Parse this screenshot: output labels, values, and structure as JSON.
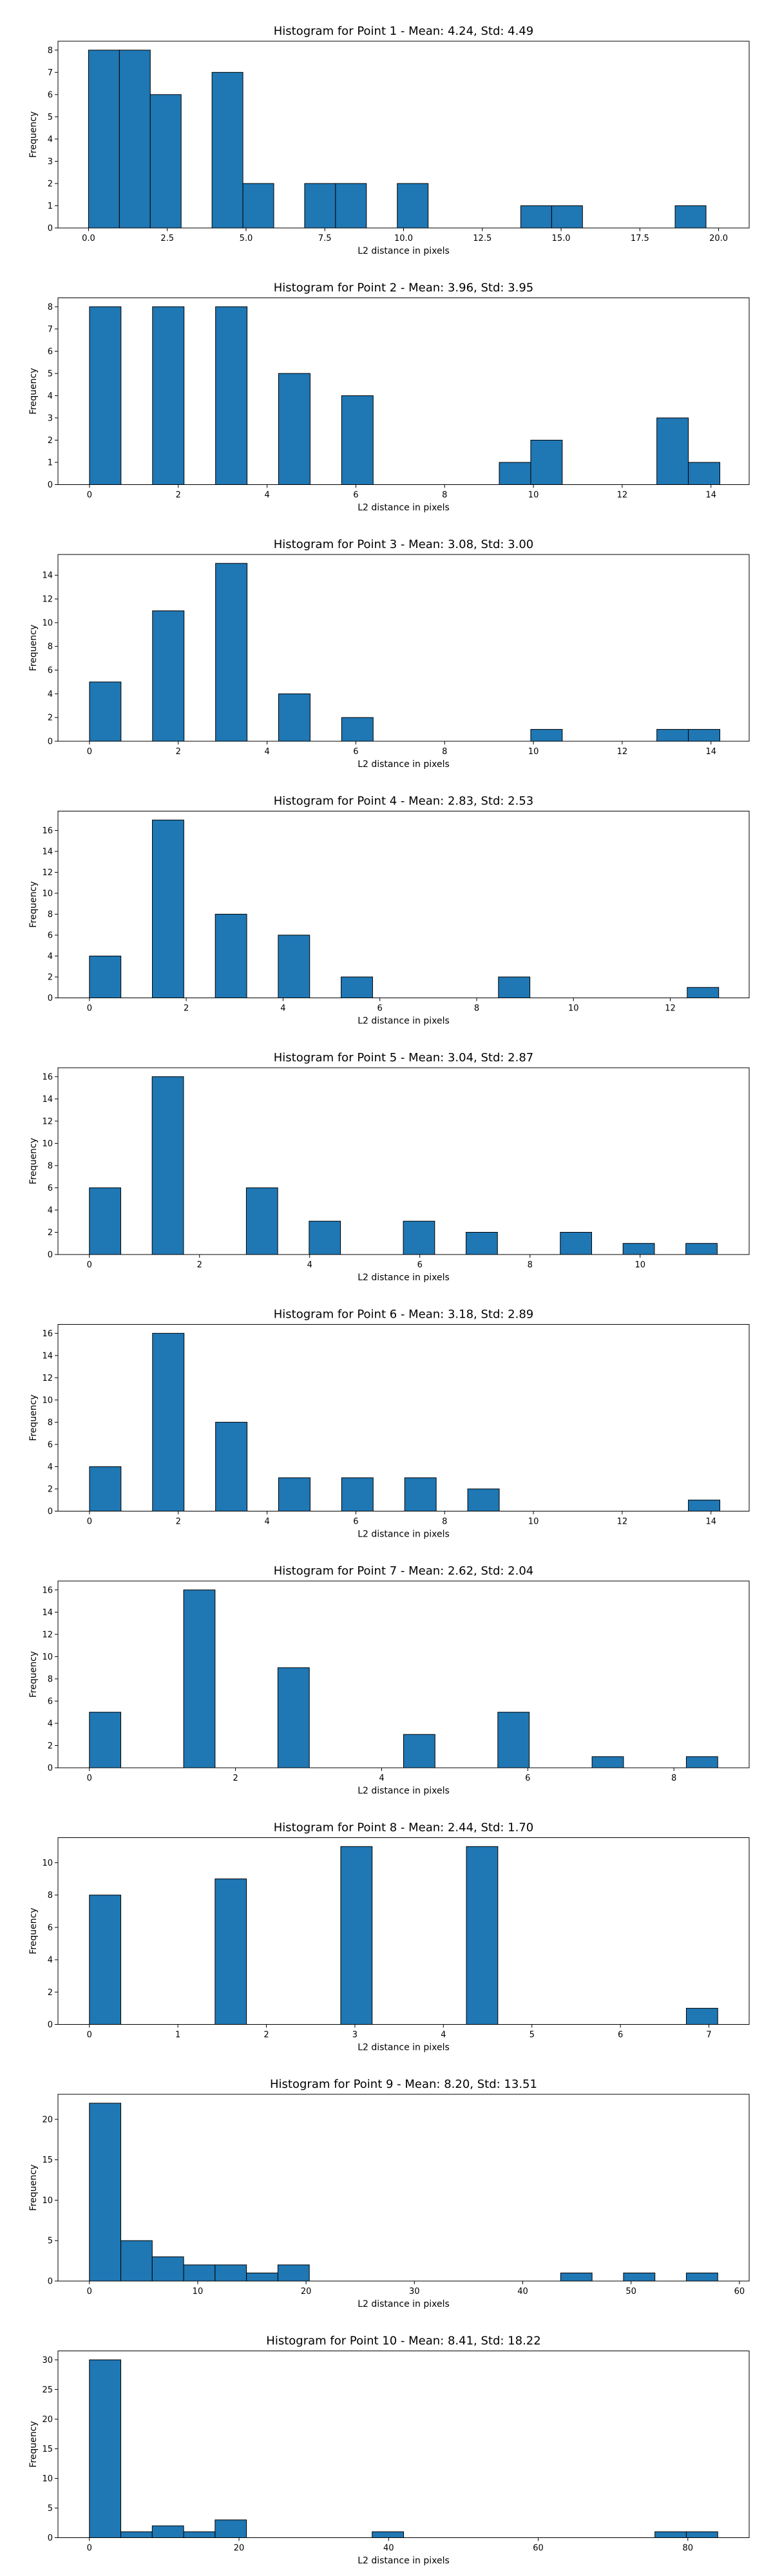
{
  "chart_data": [
    {
      "type": "bar",
      "title": "Histogram for Point 1 - Mean: 4.24, Std: 4.49",
      "xlabel": "L2 distance in pixels",
      "ylabel": "Frequency",
      "x_ticks": [
        "0.0",
        "2.5",
        "5.0",
        "7.5",
        "10.0",
        "12.5",
        "15.0",
        "17.5",
        "20.0"
      ],
      "y_ticks": [
        "0",
        "1",
        "2",
        "3",
        "4",
        "5",
        "6",
        "7",
        "8"
      ],
      "ylim": [
        0,
        8.4
      ],
      "xlim": [
        -0.97,
        20.97
      ],
      "bins": [
        [
          0.0,
          0.98,
          8
        ],
        [
          0.98,
          1.96,
          8
        ],
        [
          1.96,
          2.94,
          6
        ],
        [
          3.92,
          4.9,
          7
        ],
        [
          4.9,
          5.88,
          2
        ],
        [
          6.86,
          7.84,
          2
        ],
        [
          7.84,
          8.82,
          2
        ],
        [
          9.8,
          10.78,
          2
        ],
        [
          13.72,
          14.7,
          1
        ],
        [
          14.7,
          15.68,
          1
        ],
        [
          18.62,
          19.6,
          1
        ]
      ]
    },
    {
      "type": "bar",
      "title": "Histogram for Point 2 - Mean: 3.96, Std: 3.95",
      "xlabel": "L2 distance in pixels",
      "ylabel": "Frequency",
      "x_ticks": [
        "0",
        "2",
        "4",
        "6",
        "8",
        "10",
        "12",
        "14"
      ],
      "y_ticks": [
        "0",
        "1",
        "2",
        "3",
        "4",
        "5",
        "6",
        "7",
        "8"
      ],
      "ylim": [
        0,
        8.4
      ],
      "xlim": [
        -0.71,
        14.86
      ],
      "bins": [
        [
          0.0,
          0.71,
          8
        ],
        [
          1.42,
          2.13,
          8
        ],
        [
          2.84,
          3.55,
          8
        ],
        [
          4.26,
          4.97,
          5
        ],
        [
          5.68,
          6.39,
          4
        ],
        [
          9.23,
          9.94,
          1
        ],
        [
          9.94,
          10.65,
          2
        ],
        [
          12.78,
          13.49,
          3
        ],
        [
          13.49,
          14.2,
          1
        ]
      ]
    },
    {
      "type": "bar",
      "title": "Histogram for Point 3 - Mean: 3.08, Std: 3.00",
      "xlabel": "L2 distance in pixels",
      "ylabel": "Frequency",
      "x_ticks": [
        "0",
        "2",
        "4",
        "6",
        "8",
        "10",
        "12",
        "14"
      ],
      "y_ticks": [
        "0",
        "2",
        "4",
        "6",
        "8",
        "10",
        "12",
        "14"
      ],
      "ylim": [
        0,
        15.75
      ],
      "xlim": [
        -0.71,
        14.86
      ],
      "bins": [
        [
          0.0,
          0.71,
          5
        ],
        [
          1.42,
          2.13,
          11
        ],
        [
          2.84,
          3.55,
          15
        ],
        [
          4.26,
          4.97,
          4
        ],
        [
          5.68,
          6.39,
          2
        ],
        [
          9.94,
          10.65,
          1
        ],
        [
          12.78,
          13.49,
          1
        ],
        [
          13.49,
          14.2,
          1
        ]
      ]
    },
    {
      "type": "bar",
      "title": "Histogram for Point 4 - Mean: 2.83, Std: 2.53",
      "xlabel": "L2 distance in pixels",
      "ylabel": "Frequency",
      "x_ticks": [
        "0",
        "2",
        "4",
        "6",
        "8",
        "10",
        "12"
      ],
      "y_ticks": [
        "0",
        "2",
        "4",
        "6",
        "8",
        "10",
        "12",
        "14",
        "16"
      ],
      "ylim": [
        0,
        17.85
      ],
      "xlim": [
        -0.65,
        13.63
      ],
      "bins": [
        [
          0.0,
          0.65,
          4
        ],
        [
          1.3,
          1.95,
          17
        ],
        [
          2.6,
          3.25,
          8
        ],
        [
          3.9,
          4.55,
          6
        ],
        [
          5.2,
          5.85,
          2
        ],
        [
          8.45,
          9.1,
          2
        ],
        [
          12.35,
          13.0,
          1
        ]
      ]
    },
    {
      "type": "bar",
      "title": "Histogram for Point 5 - Mean: 3.04, Std: 2.87",
      "xlabel": "L2 distance in pixels",
      "ylabel": "Frequency",
      "x_ticks": [
        "0",
        "2",
        "4",
        "6",
        "8",
        "10"
      ],
      "y_ticks": [
        "0",
        "2",
        "4",
        "6",
        "8",
        "10",
        "12",
        "14",
        "16"
      ],
      "ylim": [
        0,
        16.8
      ],
      "xlim": [
        -0.57,
        11.98
      ],
      "bins": [
        [
          0.0,
          0.57,
          6
        ],
        [
          1.14,
          1.71,
          16
        ],
        [
          2.28,
          2.85,
          0
        ],
        [
          2.85,
          3.42,
          6
        ],
        [
          3.99,
          4.56,
          3
        ],
        [
          5.7,
          6.27,
          3
        ],
        [
          6.84,
          7.41,
          2
        ],
        [
          7.98,
          8.55,
          0
        ],
        [
          8.55,
          9.12,
          2
        ],
        [
          9.69,
          10.26,
          1
        ],
        [
          10.83,
          11.4,
          1
        ]
      ]
    },
    {
      "type": "bar",
      "title": "Histogram for Point 6 - Mean: 3.18, Std: 2.89",
      "xlabel": "L2 distance in pixels",
      "ylabel": "Frequency",
      "x_ticks": [
        "0",
        "2",
        "4",
        "6",
        "8",
        "10",
        "12",
        "14"
      ],
      "y_ticks": [
        "0",
        "2",
        "4",
        "6",
        "8",
        "10",
        "12",
        "14",
        "16"
      ],
      "ylim": [
        0,
        16.8
      ],
      "xlim": [
        -0.71,
        14.86
      ],
      "bins": [
        [
          0.0,
          0.71,
          4
        ],
        [
          1.42,
          2.13,
          16
        ],
        [
          2.84,
          3.55,
          8
        ],
        [
          4.26,
          4.97,
          3
        ],
        [
          5.68,
          6.39,
          3
        ],
        [
          7.1,
          7.81,
          3
        ],
        [
          8.52,
          9.23,
          2
        ],
        [
          13.49,
          14.2,
          1
        ]
      ]
    },
    {
      "type": "bar",
      "title": "Histogram for Point 7 - Mean: 2.62, Std: 2.04",
      "xlabel": "L2 distance in pixels",
      "ylabel": "Frequency",
      "x_ticks": [
        "0",
        "2",
        "4",
        "6",
        "8"
      ],
      "y_ticks": [
        "0",
        "2",
        "4",
        "6",
        "8",
        "10",
        "12",
        "14",
        "16"
      ],
      "ylim": [
        0,
        16.8
      ],
      "xlim": [
        -0.43,
        9.03
      ],
      "bins": [
        [
          0.0,
          0.43,
          5
        ],
        [
          1.29,
          1.72,
          16
        ],
        [
          2.58,
          3.01,
          9
        ],
        [
          4.3,
          4.73,
          3
        ],
        [
          5.59,
          6.02,
          5
        ],
        [
          6.88,
          7.31,
          1
        ],
        [
          7.74,
          8.17,
          0
        ],
        [
          8.17,
          8.6,
          1
        ]
      ]
    },
    {
      "type": "bar",
      "title": "Histogram for Point 8 - Mean: 2.44, Std: 1.70",
      "xlabel": "L2 distance in pixels",
      "ylabel": "Frequency",
      "x_ticks": [
        "0",
        "1",
        "2",
        "3",
        "4",
        "5",
        "6",
        "7"
      ],
      "y_ticks": [
        "0",
        "2",
        "4",
        "6",
        "8",
        "10"
      ],
      "ylim": [
        0,
        11.55
      ],
      "xlim": [
        -0.355,
        7.455
      ],
      "bins": [
        [
          0.0,
          0.355,
          8
        ],
        [
          1.42,
          1.775,
          9
        ],
        [
          2.84,
          3.195,
          11
        ],
        [
          4.26,
          4.615,
          11
        ],
        [
          6.745,
          7.1,
          1
        ]
      ]
    },
    {
      "type": "bar",
      "title": "Histogram for Point 9 - Mean: 8.20, Std: 13.51",
      "xlabel": "L2 distance in pixels",
      "ylabel": "Frequency",
      "x_ticks": [
        "0",
        "10",
        "20",
        "30",
        "40",
        "50",
        "60"
      ],
      "y_ticks": [
        "0",
        "5",
        "10",
        "15",
        "20"
      ],
      "ylim": [
        0,
        23.1
      ],
      "xlim": [
        -2.9,
        60.9
      ],
      "bins": [
        [
          0.0,
          2.9,
          22
        ],
        [
          2.9,
          5.8,
          5
        ],
        [
          5.8,
          8.7,
          3
        ],
        [
          8.7,
          11.6,
          2
        ],
        [
          11.6,
          14.5,
          2
        ],
        [
          14.5,
          17.4,
          1
        ],
        [
          17.4,
          20.3,
          2
        ],
        [
          43.5,
          46.4,
          1
        ],
        [
          49.3,
          52.2,
          1
        ],
        [
          55.1,
          58.0,
          1
        ]
      ]
    },
    {
      "type": "bar",
      "title": "Histogram for Point 10 - Mean: 8.41, Std: 18.22",
      "xlabel": "L2 distance in pixels",
      "ylabel": "Frequency",
      "x_ticks": [
        "0",
        "20",
        "40",
        "60",
        "80"
      ],
      "y_ticks": [
        "0",
        "5",
        "10",
        "15",
        "20",
        "25",
        "30"
      ],
      "ylim": [
        0,
        31.5
      ],
      "xlim": [
        -4.2,
        88.2
      ],
      "bins": [
        [
          0.0,
          4.2,
          30
        ],
        [
          4.2,
          8.4,
          1
        ],
        [
          8.4,
          12.6,
          2
        ],
        [
          12.6,
          16.8,
          1
        ],
        [
          16.8,
          21.0,
          3
        ],
        [
          37.8,
          42.0,
          1
        ],
        [
          75.6,
          79.8,
          1
        ],
        [
          79.8,
          84.0,
          1
        ]
      ]
    }
  ]
}
